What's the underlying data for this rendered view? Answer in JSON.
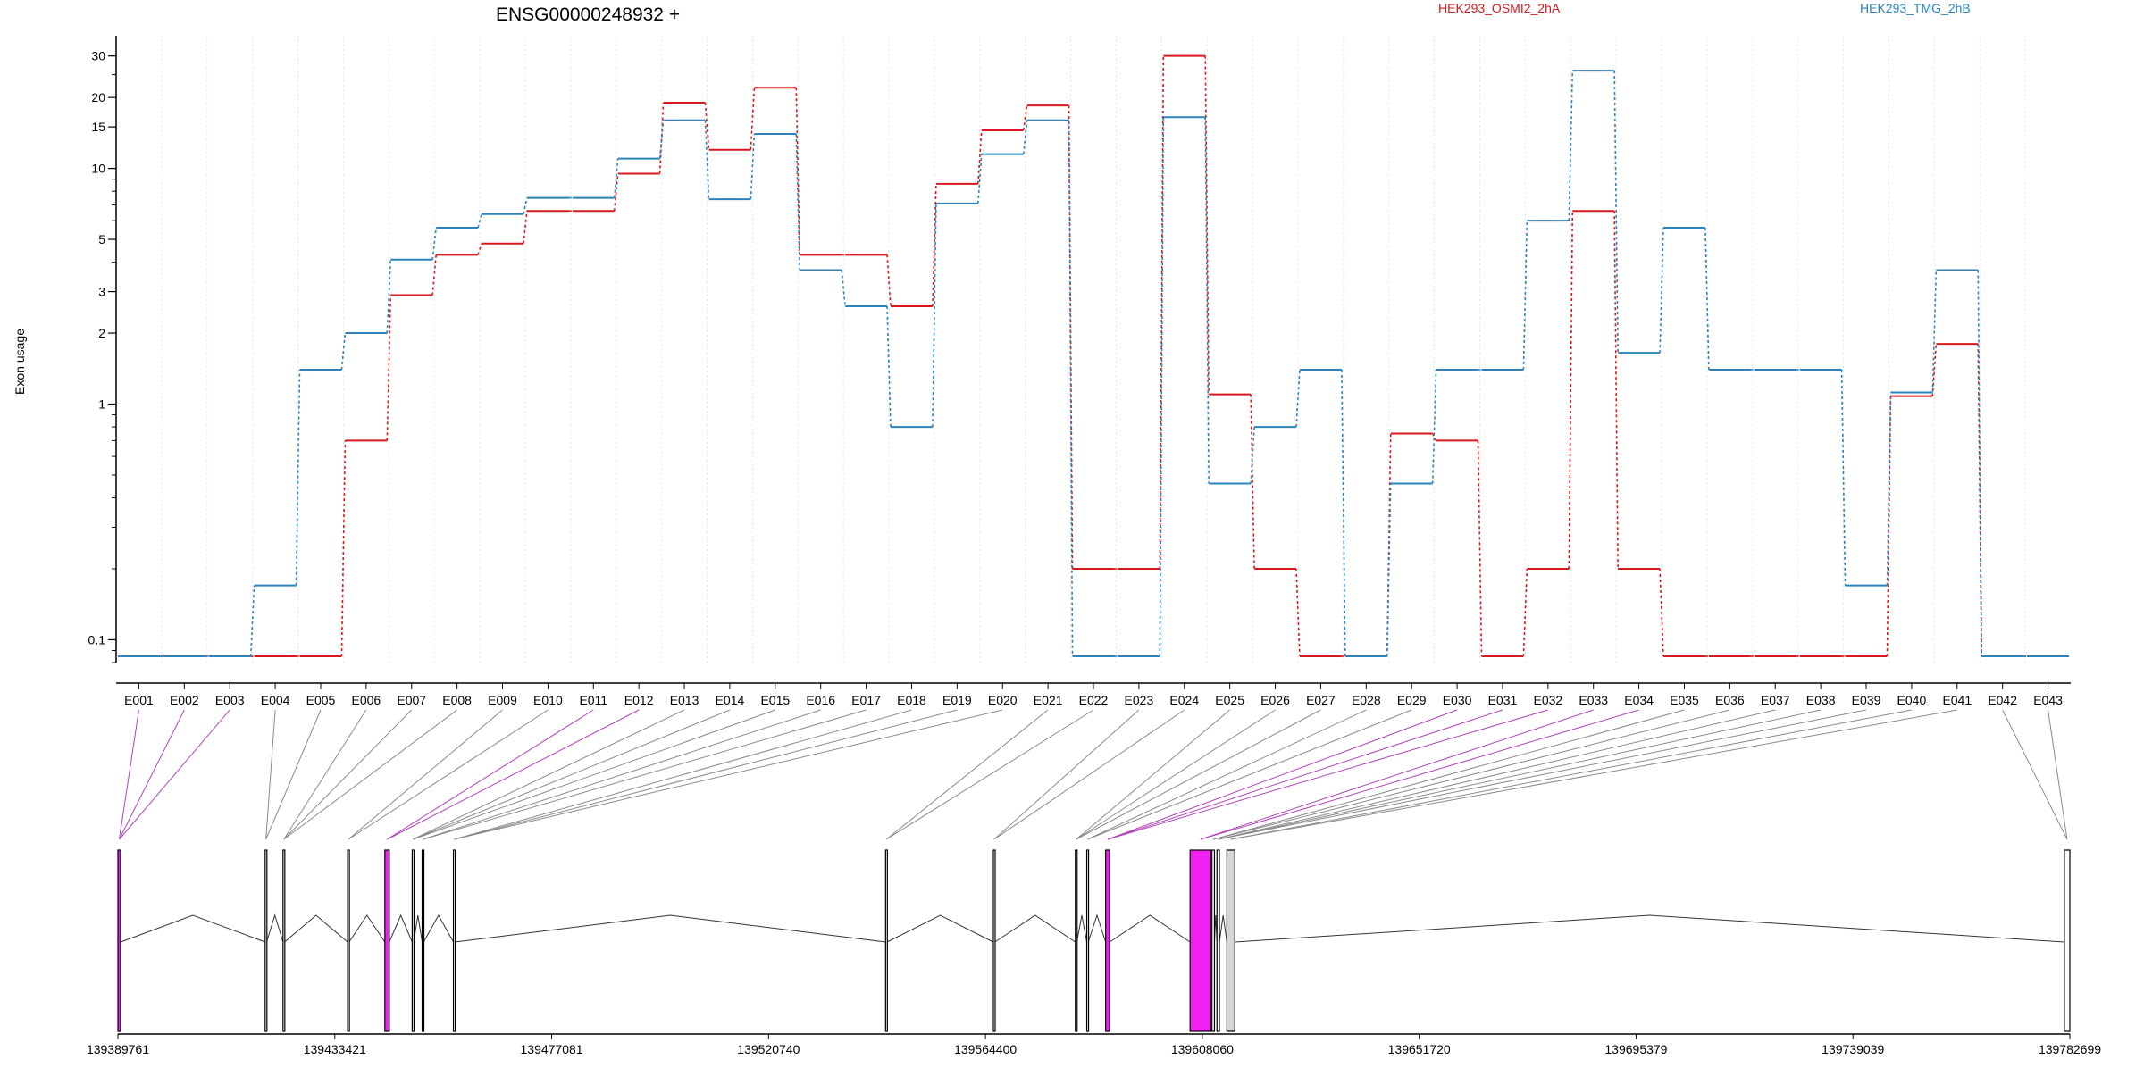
{
  "chart_data": {
    "type": "line",
    "title": "ENSG00000248932 +",
    "ylabel": "Exon usage",
    "yscale": "log",
    "ylim": [
      0.08,
      35
    ],
    "yticks": [
      0.1,
      1,
      2,
      3,
      5,
      10,
      15,
      20,
      30
    ],
    "grid": "vertical dotted",
    "legend_placement": "top",
    "categories": [
      "E001",
      "E002",
      "E003",
      "E004",
      "E005",
      "E006",
      "E007",
      "E008",
      "E009",
      "E010",
      "E011",
      "E012",
      "E013",
      "E014",
      "E015",
      "E016",
      "E017",
      "E018",
      "E019",
      "E020",
      "E021",
      "E022",
      "E023",
      "E024",
      "E025",
      "E026",
      "E027",
      "E028",
      "E029",
      "E030",
      "E031",
      "E032",
      "E033",
      "E034",
      "E035",
      "E036",
      "E037",
      "E038",
      "E039",
      "E040",
      "E041",
      "E042",
      "E043"
    ],
    "series": [
      {
        "name": "HEK293_OSMI2_2hA",
        "color": "#d7191c",
        "values": [
          0.085,
          0.085,
          0.085,
          0.085,
          0.085,
          0.7,
          2.9,
          4.3,
          4.8,
          6.6,
          6.6,
          9.5,
          19,
          12,
          22,
          4.3,
          4.3,
          2.6,
          8.6,
          14.5,
          18.5,
          0.2,
          0.2,
          30,
          1.1,
          0.2,
          0.085,
          0.085,
          0.75,
          0.7,
          0.085,
          0.2,
          6.6,
          0.2,
          0.085,
          0.085,
          0.085,
          0.085,
          0.085,
          1.08,
          1.8,
          0.085,
          0.085
        ]
      },
      {
        "name": "HEK293_TMG_2hB",
        "color": "#2b83ba",
        "values": [
          0.085,
          0.085,
          0.085,
          0.17,
          1.4,
          2,
          4.1,
          5.6,
          6.4,
          7.5,
          7.5,
          11,
          16,
          7.4,
          14,
          3.7,
          2.6,
          0.8,
          7.1,
          11.5,
          16,
          0.085,
          0.085,
          16.5,
          0.46,
          0.8,
          1.4,
          0.085,
          0.46,
          1.4,
          1.4,
          6,
          26,
          1.65,
          5.6,
          1.4,
          1.4,
          1.4,
          0.17,
          1.12,
          3.7,
          0.085,
          0.085
        ]
      }
    ],
    "gene_model": {
      "coordinate_ticks": [
        "139389761",
        "139433421",
        "139477081",
        "139520740",
        "139564400",
        "139608060",
        "139651720",
        "139695379",
        "139739039",
        "139782699"
      ],
      "exons": [
        {
          "start": 139389761,
          "end": 139390300,
          "highlight": true
        },
        {
          "start": 139419400,
          "end": 139419700,
          "highlight": false
        },
        {
          "start": 139423000,
          "end": 139423300,
          "highlight": false
        },
        {
          "start": 139436000,
          "end": 139436300,
          "highlight": false
        },
        {
          "start": 139443500,
          "end": 139444400,
          "highlight": true
        },
        {
          "start": 139449000,
          "end": 139449300,
          "highlight": false
        },
        {
          "start": 139451000,
          "end": 139451300,
          "highlight": false
        },
        {
          "start": 139457300,
          "end": 139457600,
          "highlight": false
        },
        {
          "start": 139544300,
          "end": 139544600,
          "highlight": false
        },
        {
          "start": 139566000,
          "end": 139566300,
          "highlight": false
        },
        {
          "start": 139582500,
          "end": 139582800,
          "highlight": false
        },
        {
          "start": 139584800,
          "end": 139585100,
          "highlight": false
        },
        {
          "start": 139588600,
          "end": 139589400,
          "highlight": true
        },
        {
          "start": 139605600,
          "end": 139609800,
          "highlight": true
        },
        {
          "start": 139610000,
          "end": 139610500,
          "highlight": false
        },
        {
          "start": 139611000,
          "end": 139611500,
          "highlight": false
        },
        {
          "start": 139613000,
          "end": 139614600,
          "highlight": false,
          "light": true
        },
        {
          "start": 139781600,
          "end": 139782699,
          "highlight": false
        }
      ]
    }
  }
}
